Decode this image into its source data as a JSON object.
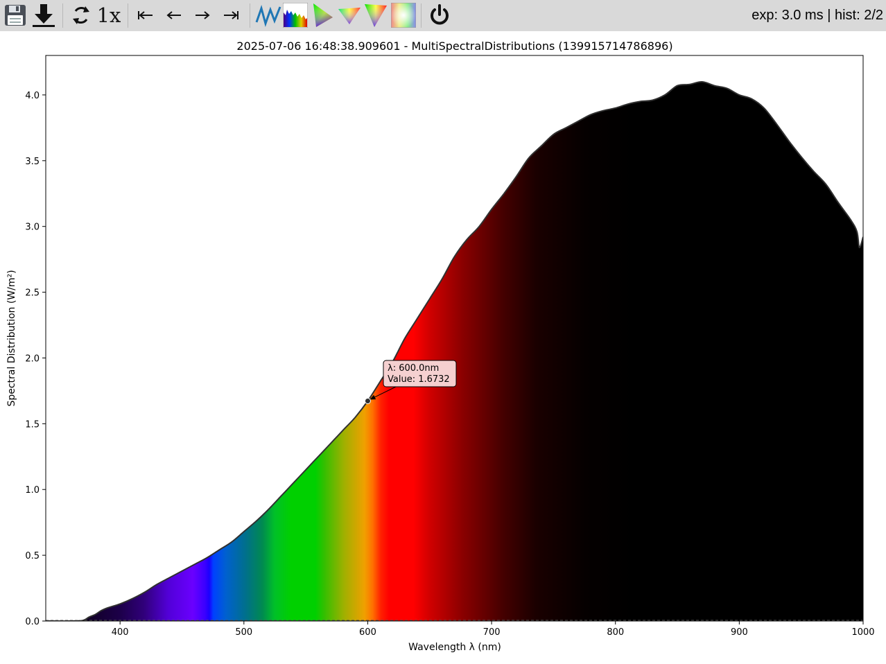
{
  "toolbar": {
    "buttons": [
      {
        "name": "save-icon",
        "label": "Save"
      },
      {
        "name": "download-icon",
        "label": "Download"
      },
      {
        "name": "refresh-icon",
        "label": "Refresh"
      },
      {
        "name": "zoom-level",
        "label": "1x"
      },
      {
        "name": "first-icon",
        "glyph": "⇤"
      },
      {
        "name": "previous-icon",
        "glyph": "←"
      },
      {
        "name": "next-icon",
        "glyph": "→"
      },
      {
        "name": "last-icon",
        "glyph": "⇥"
      },
      {
        "name": "spectrum-line-icon"
      },
      {
        "name": "spectrum-histogram-icon"
      },
      {
        "name": "chromaticity-1931-icon"
      },
      {
        "name": "chromaticity-1960-icon"
      },
      {
        "name": "chromaticity-1976-icon"
      },
      {
        "name": "color-swatch-icon"
      },
      {
        "name": "power-icon"
      }
    ],
    "zoom_label": "1x",
    "status": "exp: 3.0 ms | hist: 2/2"
  },
  "plot": {
    "title": "2025-07-06 16:48:38.909601 - MultiSpectralDistributions (139915714786896)"
  },
  "chart_data": {
    "type": "area",
    "title": "2025-07-06 16:48:38.909601 - MultiSpectralDistributions (139915714786896)",
    "xlabel": "Wavelength λ (nm)",
    "ylabel": "Spectral Distribution (W/m²)",
    "xlim": [
      340,
      1000
    ],
    "ylim": [
      0,
      4.3
    ],
    "xticks": [
      400,
      500,
      600,
      700,
      800,
      900,
      1000
    ],
    "yticks": [
      0.0,
      0.5,
      1.0,
      1.5,
      2.0,
      2.5,
      3.0,
      3.5,
      4.0
    ],
    "fill": "visible-spectrum colors",
    "grid": false,
    "series": [
      {
        "x": [
          340,
          360,
          370,
          375,
          380,
          385,
          390,
          400,
          410,
          420,
          430,
          440,
          450,
          460,
          470,
          480,
          490,
          500,
          510,
          520,
          530,
          540,
          550,
          560,
          570,
          580,
          590,
          600,
          610,
          620,
          630,
          640,
          650,
          660,
          670,
          680,
          690,
          700,
          710,
          720,
          730,
          740,
          750,
          760,
          770,
          780,
          790,
          800,
          810,
          820,
          830,
          840,
          850,
          860,
          870,
          880,
          890,
          900,
          910,
          920,
          930,
          940,
          950,
          960,
          970,
          980,
          990,
          995,
          997,
          1000
        ],
        "y": [
          0.0,
          0.0,
          0.005,
          0.03,
          0.05,
          0.08,
          0.1,
          0.13,
          0.17,
          0.22,
          0.28,
          0.33,
          0.38,
          0.43,
          0.48,
          0.54,
          0.6,
          0.68,
          0.76,
          0.85,
          0.95,
          1.05,
          1.15,
          1.25,
          1.35,
          1.45,
          1.55,
          1.6732,
          1.82,
          1.97,
          2.15,
          2.3,
          2.45,
          2.6,
          2.77,
          2.9,
          3.0,
          3.13,
          3.25,
          3.38,
          3.52,
          3.61,
          3.7,
          3.75,
          3.8,
          3.85,
          3.88,
          3.9,
          3.93,
          3.95,
          3.96,
          4.0,
          4.07,
          4.08,
          4.1,
          4.07,
          4.05,
          4.0,
          3.97,
          3.9,
          3.78,
          3.65,
          3.53,
          3.42,
          3.32,
          3.18,
          3.05,
          2.96,
          2.84,
          2.92
        ]
      }
    ],
    "annotation": {
      "x": 600,
      "y": 1.6732,
      "line1": "λ: 600.0nm",
      "line2": "Value: 1.6732",
      "bg": "#f5d0d0"
    }
  }
}
